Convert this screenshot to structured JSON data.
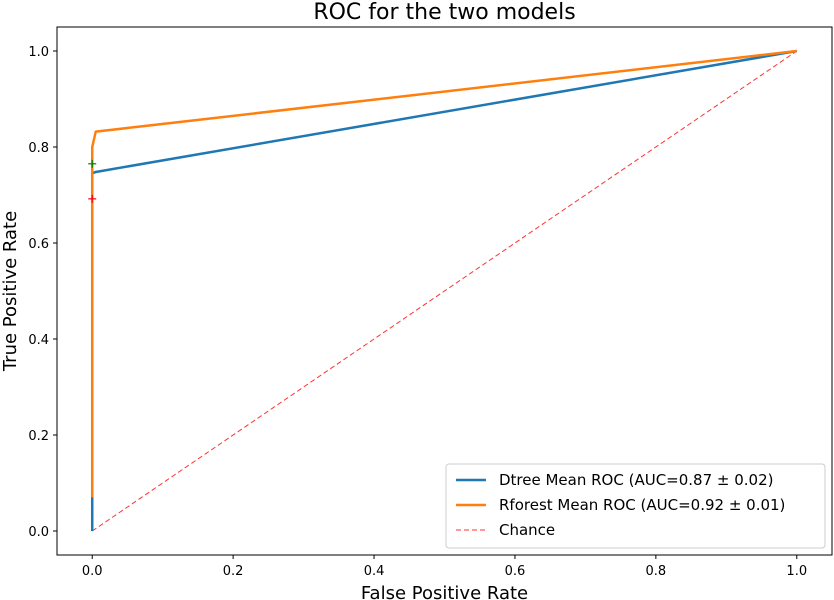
{
  "chart_data": {
    "type": "line",
    "title": "ROC for the two models",
    "xlabel": "False Positive Rate",
    "ylabel": "True Positive Rate",
    "xlim": [
      -0.05,
      1.05
    ],
    "ylim": [
      -0.05,
      1.05
    ],
    "xticks": [
      "0.0",
      "0.2",
      "0.4",
      "0.6",
      "0.8",
      "1.0"
    ],
    "yticks": [
      "0.0",
      "0.2",
      "0.4",
      "0.6",
      "0.8",
      "1.0"
    ],
    "grid": false,
    "legend_position": "lower-right",
    "series": [
      {
        "name": "Dtree Mean ROC (AUC=0.87 ± 0.02)",
        "color": "#1f77b4",
        "style": "solid",
        "x": [
          0.0,
          0.0,
          0.0,
          0.0,
          0.005,
          1.0
        ],
        "y": [
          0.0,
          0.25,
          0.6,
          0.745,
          0.748,
          1.0
        ]
      },
      {
        "name": "Rforest Mean ROC (AUC=0.92 ± 0.01)",
        "color": "#ff7f0e",
        "style": "solid",
        "x": [
          0.0,
          0.0,
          0.0,
          0.0,
          0.005,
          1.0
        ],
        "y": [
          0.07,
          0.4,
          0.75,
          0.8,
          0.832,
          1.0
        ]
      },
      {
        "name": "Chance",
        "color": "#ff3333",
        "style": "dashed",
        "x": [
          0.0,
          1.0
        ],
        "y": [
          0.0,
          1.0
        ]
      }
    ],
    "markers": [
      {
        "x": 0.0,
        "y": 0.765,
        "color": "#008000",
        "symbol": "+"
      },
      {
        "x": 0.0,
        "y": 0.692,
        "color": "#ff0000",
        "symbol": "+"
      }
    ]
  }
}
